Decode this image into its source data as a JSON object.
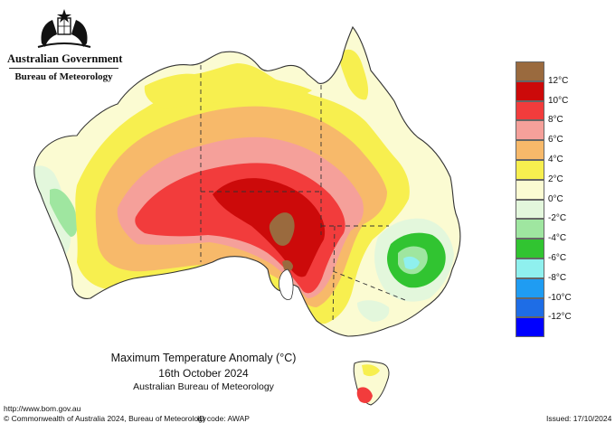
{
  "header": {
    "government": "Australian Government",
    "bureau": "Bureau of Meteorology"
  },
  "map": {
    "title": "Maximum Temperature Anomaly (°C)",
    "date": "16th October 2024",
    "source": "Australian Bureau of Meteorology",
    "region": "Australia",
    "projection_note": "state borders dashed"
  },
  "legend": {
    "title": "",
    "entries": [
      {
        "label": "12°C",
        "color": "#9a6a3e"
      },
      {
        "label": "10°C",
        "color": "#cc0a0a"
      },
      {
        "label": "8°C",
        "color": "#f23c3c"
      },
      {
        "label": "6°C",
        "color": "#f5a09a"
      },
      {
        "label": "4°C",
        "color": "#f7b96a"
      },
      {
        "label": "2°C",
        "color": "#f7ef4f"
      },
      {
        "label": "0°C",
        "color": "#fbfbd2"
      },
      {
        "label": "-2°C",
        "color": "#e3f7dc"
      },
      {
        "label": "-4°C",
        "color": "#9fe6a0"
      },
      {
        "label": "-6°C",
        "color": "#31c431"
      },
      {
        "label": "-8°C",
        "color": "#8ff0ee"
      },
      {
        "label": "-10°C",
        "color": "#1f9cf2"
      },
      {
        "label": "-12°C",
        "color": "#1e6de6"
      },
      {
        "label": "",
        "color": "#0000ff"
      }
    ]
  },
  "footer": {
    "url": "http://www.bom.gov.au",
    "copyright": "© Commonwealth of Australia 2024, Bureau of Meteorology",
    "id_code": "ID code: AWAP",
    "issued": "Issued: 17/10/2024"
  }
}
